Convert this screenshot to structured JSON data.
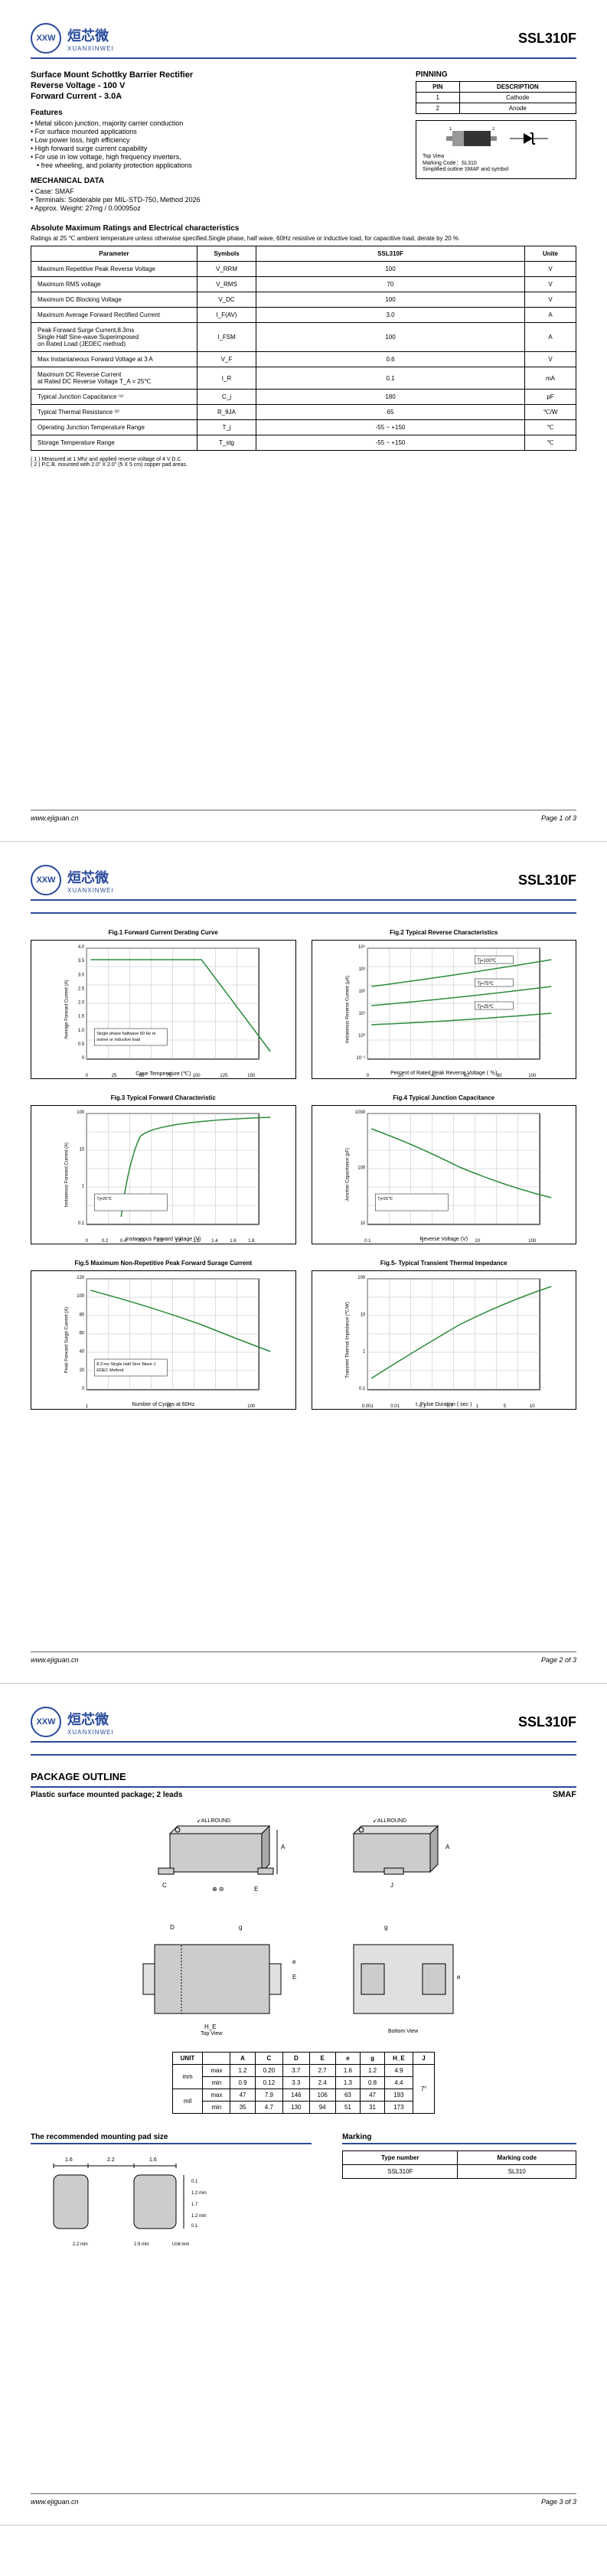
{
  "part_number": "SSL310F",
  "logo": {
    "cn": "烜芯微",
    "en": "XUANXINWEI",
    "icon": "XXW"
  },
  "title": "Surface Mount Schottky Barrier Rectifier",
  "subtitle1": "Reverse Voltage - 100 V",
  "subtitle2": "Forward Current - 3.0A",
  "features_heading": "Features",
  "features": [
    "Metal silicon junction, majority carrier conduction",
    "For surface mounted applications",
    "Low power loss, high efficiency",
    "High forward surge current capability",
    "For use in low voltage, high frequency inverters,",
    "free wheeling, and polarity protection applications"
  ],
  "mech_heading": "MECHANICAL DATA",
  "mech": [
    "• Case: SMAF",
    "• Terminals: Solderable per MIL-STD-750, Method 2026",
    "• Approx. Weight: 27mg / 0.00095oz"
  ],
  "pinning_heading": "PINNING",
  "pinning_cols": [
    "PIN",
    "DESCRIPTION"
  ],
  "pinning_rows": [
    [
      "1",
      "Cathode"
    ],
    [
      "2",
      "Anode"
    ]
  ],
  "topview_note1": "Top View",
  "topview_note2": "Marking Code：SL310",
  "topview_note3": "Simplified outline SMAF and symbol",
  "abs_heading": "Absolute Maximum Ratings and Electrical characteristics",
  "abs_note": "Ratings at 25 ℃ ambient temperature unless otherwise specified.Single phase, half wave, 60Hz resistive or inductive load, for capacitive load, derate by 20 %",
  "ratings_head": [
    "Parameter",
    "Symbols",
    "SSL310F",
    "Unite"
  ],
  "ratings": [
    {
      "p": "Maximum Repetitive Peak Reverse Voltage",
      "s": "V_RRM",
      "v": "100",
      "u": "V"
    },
    {
      "p": "Maximum RMS voltage",
      "s": "V_RMS",
      "v": "70",
      "u": "V"
    },
    {
      "p": "Maximum DC Blocking Voltage",
      "s": "V_DC",
      "v": "100",
      "u": "V"
    },
    {
      "p": "Maximum Average Forward Rectified Current",
      "s": "I_F(AV)",
      "v": "3.0",
      "u": "A"
    },
    {
      "p": "Peak Forward Surge Current,8.3ms\nSingle Half Sine-wave Superimposed\non Rated Load (JEDEC method)",
      "s": "I_FSM",
      "v": "100",
      "u": "A"
    },
    {
      "p": "Max Instantaneous Forward Voltage at 3 A",
      "s": "V_F",
      "v": "0.6",
      "u": "V"
    },
    {
      "p": "Maximum DC Reverse Current\nat Rated DC Reverse Voltage   T_A = 25℃",
      "s": "I_R",
      "v": "0.1",
      "u": "mA"
    },
    {
      "p": "Typical Junction Capacitance ⁽¹⁾",
      "s": "C_j",
      "v": "180",
      "u": "pF"
    },
    {
      "p": "Typical Thermal Resistance ⁽²⁾",
      "s": "R_θJA",
      "v": "65",
      "u": "℃/W"
    },
    {
      "p": "Operating Junction Temperature Range",
      "s": "T_j",
      "v": "-55 ~ +150",
      "u": "℃"
    },
    {
      "p": "Storage Temperature Range",
      "s": "T_stg",
      "v": "-55 ~ +150",
      "u": "℃"
    }
  ],
  "footnotes": [
    "( 1 ) Measured at 1 Mhz and applied reverse voltage of 4 V D.C",
    "( 2 ) P.C.B. mounted with 2.0\" X 2.0\" (5 X 5 cm) copper pad areas."
  ],
  "url": "www.ejiguan.cn",
  "page1": "Page 1 of 3",
  "page2": "Page 2 of 3",
  "page3": "Page 3 of 3",
  "charts": [
    {
      "title": "Fig.1 Forward Current Derating Curve",
      "ylabel": "Average Forward Current (A)",
      "xlabel": "Case Temperature (℃)",
      "xticks": [
        "0",
        "25",
        "50",
        "75",
        "100",
        "125",
        "150"
      ],
      "yticks": [
        "0",
        "0.5",
        "1.0",
        "1.5",
        "2.0",
        "2.5",
        "3.0",
        "3.5",
        "4.0"
      ],
      "note": "Single phase halfwave 60 Hz resistive or inductive load",
      "color": "#2a8b3a"
    },
    {
      "title": "Fig.2 Typical Reverse Characteristics",
      "ylabel": "Instaneous Reverse Current (μA)",
      "xlabel": "Percent of Rated Peak Reverse Voltage ( ％)",
      "xticks": [
        "0",
        "20",
        "40",
        "60",
        "80",
        "100"
      ],
      "yticks": [
        "10⁻¹",
        "10⁰",
        "10¹",
        "10²",
        "10³",
        "10⁴"
      ],
      "legends": [
        "Tj=100℃",
        "Tj=75℃",
        "Tj=25℃"
      ],
      "color": "#2a8b3a"
    },
    {
      "title": "Fig.3 Typical Forward Characteristic",
      "ylabel": "Instaneous Forward Current (A)",
      "xlabel": "Instaneous Forward Voltage (V)",
      "xticks": [
        "0",
        "0.2",
        "0.4",
        "0.6",
        "0.8",
        "1.0",
        "1.2",
        "1.4",
        "1.6",
        "1.8"
      ],
      "yticks": [
        "0.1",
        "1",
        "10",
        "100"
      ],
      "note": "Tj=25℃",
      "color": "#2a8b3a"
    },
    {
      "title": "Fig.4 Typical Junction Capacitance",
      "ylabel": "Junction Capacitance (pF)",
      "xlabel": "Reverse Voltage (V)",
      "xticks": [
        "0.1",
        "1",
        "10",
        "100"
      ],
      "yticks": [
        "10",
        "100",
        "1000"
      ],
      "note": "Tj=25℃",
      "color": "#2a8b3a"
    },
    {
      "title": "Fig.5 Maximum Non-Repetitive Peak Forward Surage Current",
      "ylabel": "Peak Forward Surge Current (A)",
      "xlabel": "Number of Cycles at 60Hz",
      "xticks": [
        "1",
        "10",
        "100"
      ],
      "yticks": [
        "0",
        "20",
        "40",
        "60",
        "80",
        "100",
        "120"
      ],
      "note": "8.3 ms Single Half Sine Wave JEDEC Method",
      "color": "#2a8b3a"
    },
    {
      "title": "Fig.5- Typical Transient Thermal Impedance",
      "ylabel": "Transient Thermal Impedance (℃/W)",
      "xlabel": "t, Pulse Duration ( sec )",
      "xticks": [
        "0.001",
        "0.01",
        "0.1",
        "0.7",
        "1",
        "5",
        "10"
      ],
      "yticks": [
        "0.1",
        "1",
        "10",
        "100"
      ],
      "color": "#2a8b3a"
    }
  ],
  "pkg_heading": "PACKAGE OUTLINE",
  "pkg_sub": "Plastic surface mounted package; 2 leads",
  "pkg_type": "SMAF",
  "pkg_labels": {
    "top": "Top View",
    "bottom": "Bottom View",
    "allround": "↙ALLROUND"
  },
  "dim_head": [
    "UNIT",
    "",
    "A",
    "C",
    "D",
    "E",
    "e",
    "g",
    "H_E",
    "J"
  ],
  "dim_rows": [
    [
      "mm",
      "max",
      "1.2",
      "0.20",
      "3.7",
      "2.7",
      "1.6",
      "1.2",
      "4.9",
      ""
    ],
    [
      "",
      "min",
      "0.9",
      "0.12",
      "3.3",
      "2.4",
      "1.3",
      "0.8",
      "4.4",
      "7°"
    ],
    [
      "mil",
      "max",
      "47",
      "7.9",
      "146",
      "106",
      "63",
      "47",
      "193",
      ""
    ],
    [
      "",
      "min",
      "35",
      "4.7",
      "130",
      "94",
      "51",
      "31",
      "173",
      ""
    ]
  ],
  "dim_merge": "7°",
  "mount_heading": "The recommended mounting pad size",
  "mount_dims": {
    "w": "1.6",
    "gap": "2.2",
    "full": "1.6",
    "h": "0.1"
  },
  "marking_heading": "Marking",
  "marking_head": [
    "Type number",
    "Marking code"
  ],
  "marking_rows": [
    [
      "SSL310F",
      "SL310"
    ]
  ]
}
